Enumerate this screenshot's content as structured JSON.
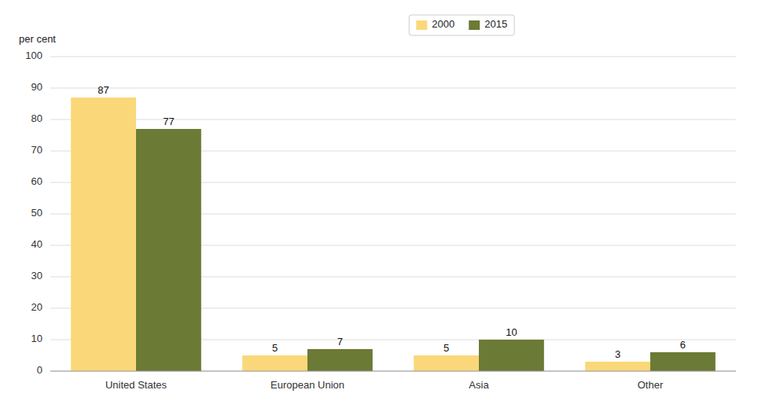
{
  "chart_data": {
    "type": "bar",
    "ylabel": "per cent",
    "categories": [
      "United States",
      "European Union",
      "Asia",
      "Other"
    ],
    "series": [
      {
        "name": "2000",
        "color": "#FAD87A",
        "values": [
          87,
          5,
          5,
          3
        ]
      },
      {
        "name": "2015",
        "color": "#6B7A35",
        "values": [
          77,
          7,
          10,
          6
        ]
      }
    ],
    "ylim": [
      0,
      100
    ],
    "yticks": [
      0,
      10,
      20,
      30,
      40,
      50,
      60,
      70,
      80,
      90,
      100
    ],
    "grid": true,
    "legend": "top",
    "data_labels": true
  }
}
